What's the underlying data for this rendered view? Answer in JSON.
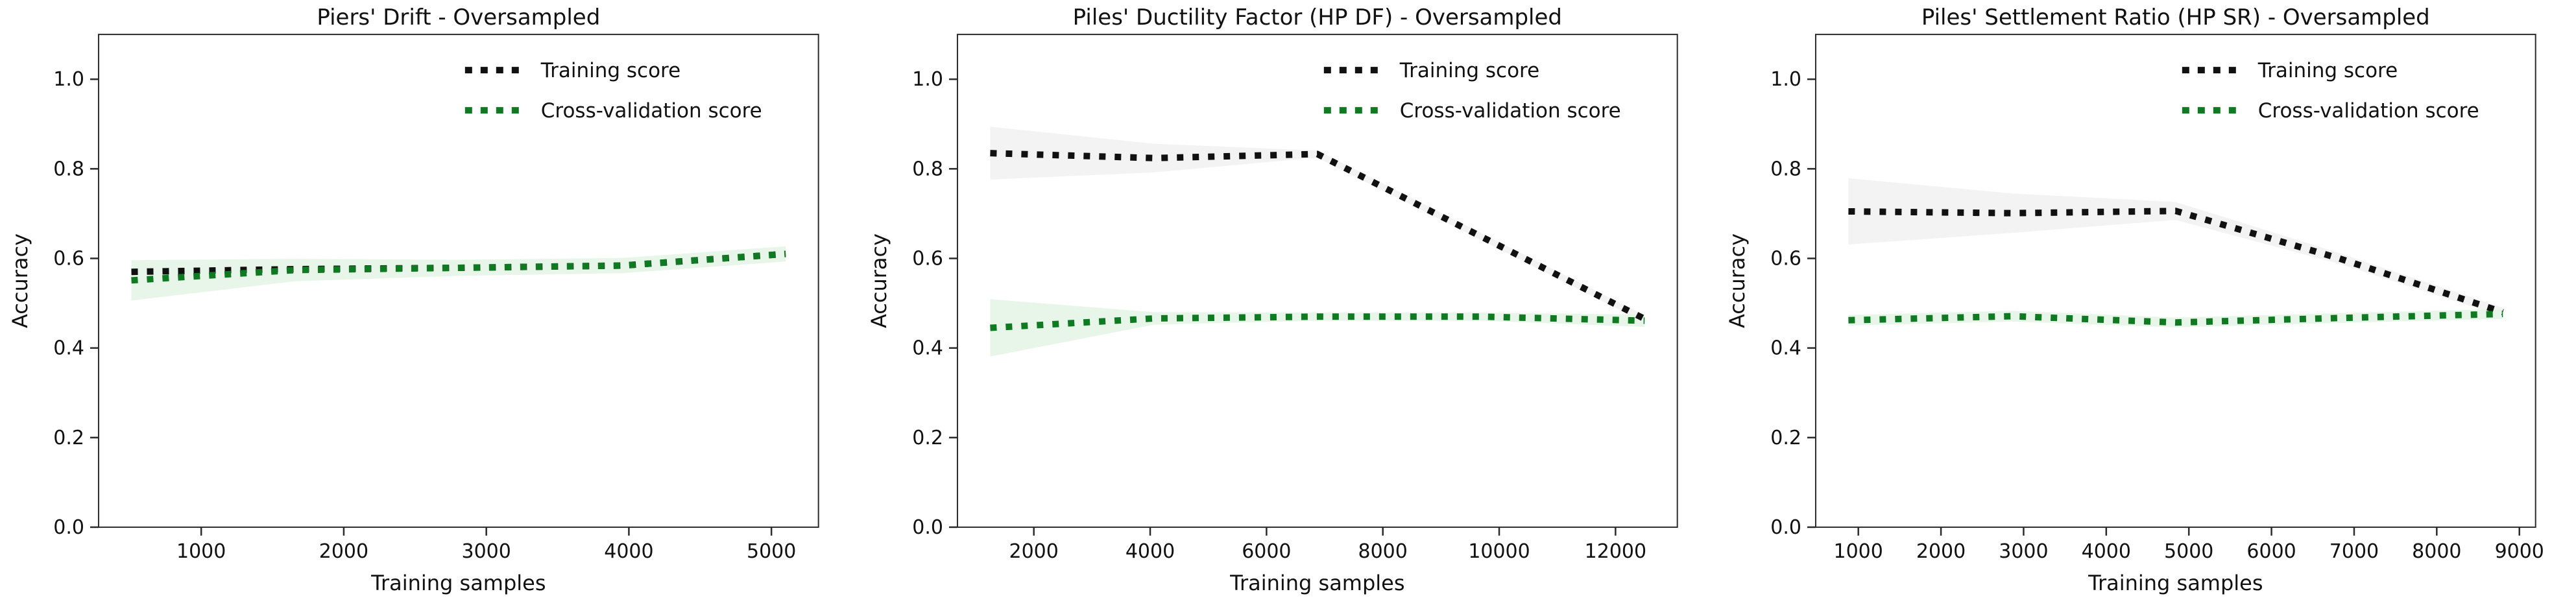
{
  "figure": {
    "background": "#ffffff",
    "text_color": "#111111",
    "spine_color": "#2b2b2b"
  },
  "legend": {
    "position": "upper right",
    "frame": false,
    "entries": [
      {
        "label": "Training score",
        "color": "#111111",
        "linestyle": "dotted"
      },
      {
        "label": "Cross-validation score",
        "color": "#107a22",
        "linestyle": "dotted"
      }
    ]
  },
  "chart_data": [
    {
      "type": "line",
      "title": "Piers' Drift - Oversampled",
      "xlabel": "Training samples",
      "ylabel": "Accuracy",
      "xlim": [
        280,
        5330
      ],
      "ylim": [
        0,
        1.1
      ],
      "xticks": [
        1000,
        2000,
        3000,
        4000,
        5000
      ],
      "yticks": [
        0.0,
        0.2,
        0.4,
        0.6,
        0.8,
        1.0
      ],
      "grid": false,
      "x": [
        510,
        1657,
        2805,
        3952,
        5100
      ],
      "series": [
        {
          "name": "Training score",
          "color": "#111111",
          "linestyle": "dotted",
          "values": [
            0.57,
            0.576,
            0.579,
            0.584,
            0.61
          ],
          "band_lower": [
            0.562,
            0.571,
            0.575,
            0.579,
            0.604
          ],
          "band_upper": [
            0.578,
            0.581,
            0.583,
            0.589,
            0.616
          ],
          "band_color": "#f3f3f3"
        },
        {
          "name": "Cross-validation score",
          "color": "#107a22",
          "linestyle": "dotted",
          "values": [
            0.551,
            0.574,
            0.579,
            0.584,
            0.61
          ],
          "band_lower": [
            0.506,
            0.549,
            0.561,
            0.567,
            0.593
          ],
          "band_upper": [
            0.596,
            0.599,
            0.597,
            0.601,
            0.627
          ],
          "band_color": "#e8f6ea"
        }
      ]
    },
    {
      "type": "line",
      "title": "Piles' Ductility Factor (HP DF) - Oversampled",
      "xlabel": "Training samples",
      "ylabel": "Accuracy",
      "xlim": [
        687,
        13063
      ],
      "ylim": [
        0,
        1.1
      ],
      "xticks": [
        2000,
        4000,
        6000,
        8000,
        10000,
        12000
      ],
      "yticks": [
        0.0,
        0.2,
        0.4,
        0.6,
        0.8,
        1.0
      ],
      "grid": false,
      "x": [
        1250,
        4062,
        6875,
        9687,
        12500
      ],
      "series": [
        {
          "name": "Training score",
          "color": "#111111",
          "linestyle": "dotted",
          "values": [
            0.835,
            0.824,
            0.833,
            0.649,
            0.465
          ],
          "band_lower": [
            0.776,
            0.792,
            0.825,
            0.641,
            0.457
          ],
          "band_upper": [
            0.894,
            0.856,
            0.841,
            0.657,
            0.473
          ],
          "band_color": "#f3f3f3"
        },
        {
          "name": "Cross-validation score",
          "color": "#107a22",
          "linestyle": "dotted",
          "values": [
            0.445,
            0.466,
            0.47,
            0.47,
            0.461
          ],
          "band_lower": [
            0.381,
            0.452,
            0.461,
            0.461,
            0.447
          ],
          "band_upper": [
            0.509,
            0.48,
            0.479,
            0.479,
            0.475
          ],
          "band_color": "#e8f6ea"
        }
      ]
    },
    {
      "type": "line",
      "title": "Piles' Settlement Ratio (HP SR) - Oversampled",
      "xlabel": "Training samples",
      "ylabel": "Accuracy",
      "xlim": [
        484,
        9196
      ],
      "ylim": [
        0,
        1.1
      ],
      "xticks": [
        1000,
        2000,
        3000,
        4000,
        5000,
        6000,
        7000,
        8000,
        9000
      ],
      "yticks": [
        0.0,
        0.2,
        0.4,
        0.6,
        0.8,
        1.0
      ],
      "grid": false,
      "x": [
        880,
        2860,
        4840,
        6820,
        8800
      ],
      "series": [
        {
          "name": "Training score",
          "color": "#111111",
          "linestyle": "dotted",
          "values": [
            0.705,
            0.701,
            0.706,
            0.6,
            0.48
          ],
          "band_lower": [
            0.631,
            0.657,
            0.686,
            0.588,
            0.47
          ],
          "band_upper": [
            0.779,
            0.745,
            0.726,
            0.612,
            0.49
          ],
          "band_color": "#f3f3f3"
        },
        {
          "name": "Cross-validation score",
          "color": "#107a22",
          "linestyle": "dotted",
          "values": [
            0.462,
            0.471,
            0.457,
            0.467,
            0.476
          ],
          "band_lower": [
            0.45,
            0.459,
            0.446,
            0.456,
            0.465
          ],
          "band_upper": [
            0.474,
            0.483,
            0.468,
            0.478,
            0.487
          ],
          "band_color": "#e8f6ea"
        }
      ]
    }
  ]
}
